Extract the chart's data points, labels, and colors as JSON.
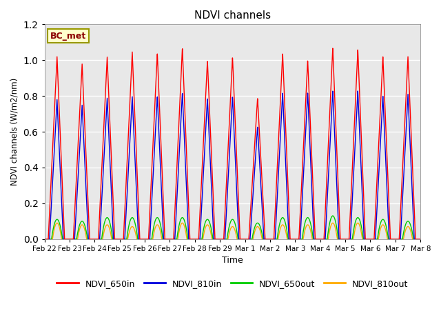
{
  "title": "NDVI channels",
  "xlabel": "Time",
  "ylabel": "NDVI channels (W/m2/nm)",
  "ylim": [
    0,
    1.2
  ],
  "annotation_text": "BC_met",
  "colors": {
    "NDVI_650in": "#ff0000",
    "NDVI_810in": "#0000dd",
    "NDVI_650out": "#00cc00",
    "NDVI_810out": "#ffaa00"
  },
  "background_color": "#e8e8e8",
  "grid_color": "white",
  "peak_heights_650in": [
    1.02,
    0.98,
    1.02,
    1.05,
    1.04,
    1.07,
    1.0,
    1.02,
    0.79,
    1.04,
    1.0,
    1.07,
    1.06,
    1.02,
    1.02
  ],
  "peak_heights_810in": [
    0.78,
    0.75,
    0.79,
    0.8,
    0.8,
    0.82,
    0.79,
    0.8,
    0.63,
    0.82,
    0.82,
    0.83,
    0.83,
    0.8,
    0.81
  ],
  "peak_heights_650out": [
    0.11,
    0.1,
    0.12,
    0.12,
    0.12,
    0.12,
    0.11,
    0.11,
    0.09,
    0.12,
    0.12,
    0.13,
    0.12,
    0.11,
    0.1
  ],
  "peak_heights_810out": [
    0.09,
    0.08,
    0.08,
    0.07,
    0.08,
    0.09,
    0.08,
    0.07,
    0.07,
    0.08,
    0.08,
    0.09,
    0.09,
    0.08,
    0.07
  ],
  "x_tick_labels": [
    "Feb 22",
    "Feb 23",
    "Feb 24",
    "Feb 25",
    "Feb 26",
    "Feb 27",
    "Feb 28",
    "Feb 29",
    "Mar 1",
    "Mar 2",
    "Mar 3",
    "Mar 4",
    "Mar 5",
    "Mar 6",
    "Mar 7",
    "Mar 8"
  ],
  "x_tick_positions": [
    0,
    1,
    2,
    3,
    4,
    5,
    6,
    7,
    8,
    9,
    10,
    11,
    12,
    13,
    14,
    15
  ],
  "figsize": [
    6.4,
    4.8
  ],
  "dpi": 100
}
